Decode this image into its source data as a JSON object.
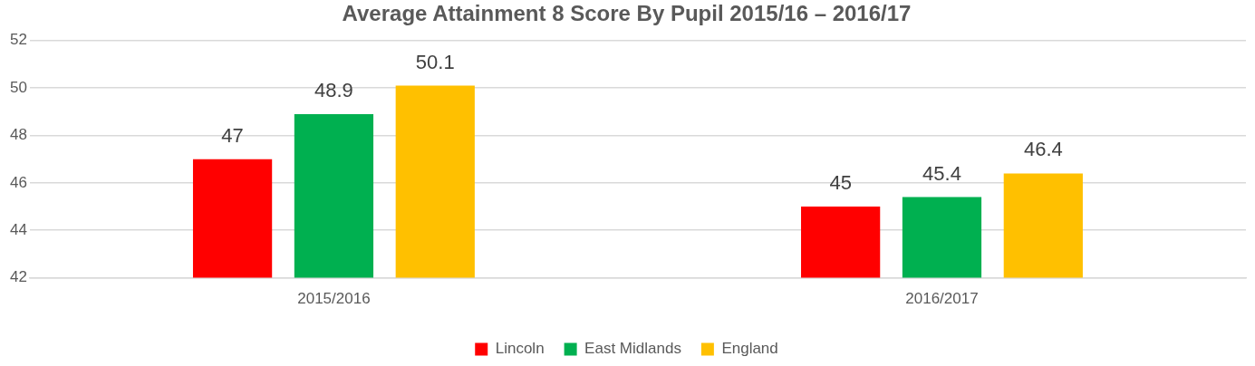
{
  "chart_data": {
    "type": "bar",
    "title": "Average Attainment 8 Score By Pupil 2015/16 – 2016/17",
    "categories": [
      "2015/2016",
      "2016/2017"
    ],
    "series": [
      {
        "name": "Lincoln",
        "color": "#ff0000",
        "values": [
          47,
          45
        ]
      },
      {
        "name": "East Midlands",
        "color": "#00b050",
        "values": [
          48.9,
          45.4
        ]
      },
      {
        "name": "England",
        "color": "#ffc000",
        "values": [
          50.1,
          46.4
        ]
      }
    ],
    "ylim": [
      42,
      52
    ],
    "yticks": [
      42,
      44,
      46,
      48,
      50,
      52
    ],
    "grid": "y",
    "legend": "bottom",
    "data_labels": true
  }
}
